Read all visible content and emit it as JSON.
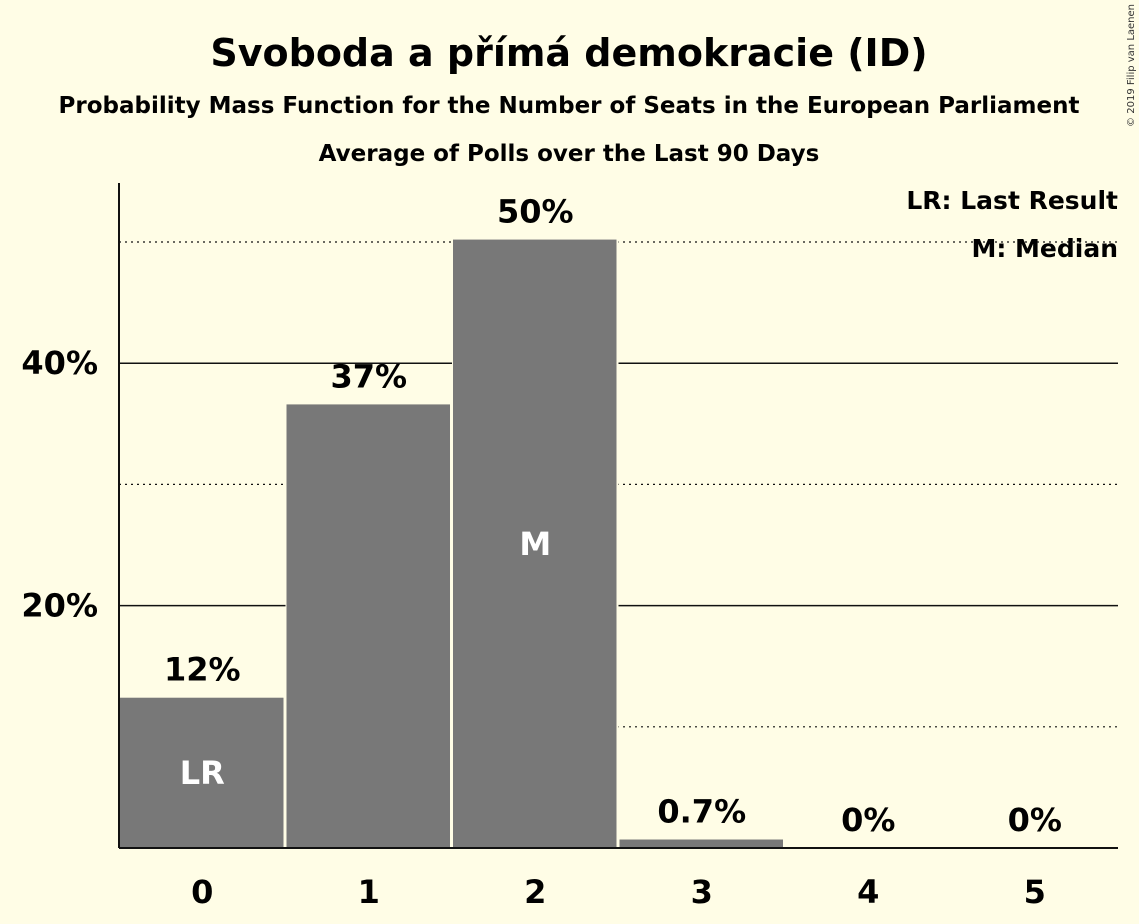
{
  "chart_data": {
    "type": "bar",
    "title": "Svoboda a přímá demokracie (ID)",
    "subtitle": "Probability Mass Function for the Number of Seats in the European Parliament",
    "subtitle2": "Average of Polls over the Last 90 Days",
    "xlabel": "",
    "ylabel": "",
    "categories": [
      "0",
      "1",
      "2",
      "3",
      "4",
      "5"
    ],
    "values": [
      12.4,
      36.6,
      50.2,
      0.7,
      0,
      0
    ],
    "value_labels": [
      "12%",
      "37%",
      "50%",
      "0.7%",
      "0%",
      "0%"
    ],
    "in_bar_labels": [
      "LR",
      "",
      "M",
      "",
      "",
      ""
    ],
    "ylim": [
      0,
      55
    ],
    "y_ticks": [
      20,
      40
    ],
    "y_tick_labels": [
      "20%",
      "40%"
    ],
    "minor_gridlines": [
      10,
      30,
      50
    ],
    "legend": [
      "LR: Last Result",
      "M: Median"
    ],
    "legend_position": "top-right",
    "copyright": "© 2019 Filip van Laenen",
    "colors": {
      "bar": "#787878",
      "background": "#fffde6",
      "text": "#111111"
    }
  }
}
